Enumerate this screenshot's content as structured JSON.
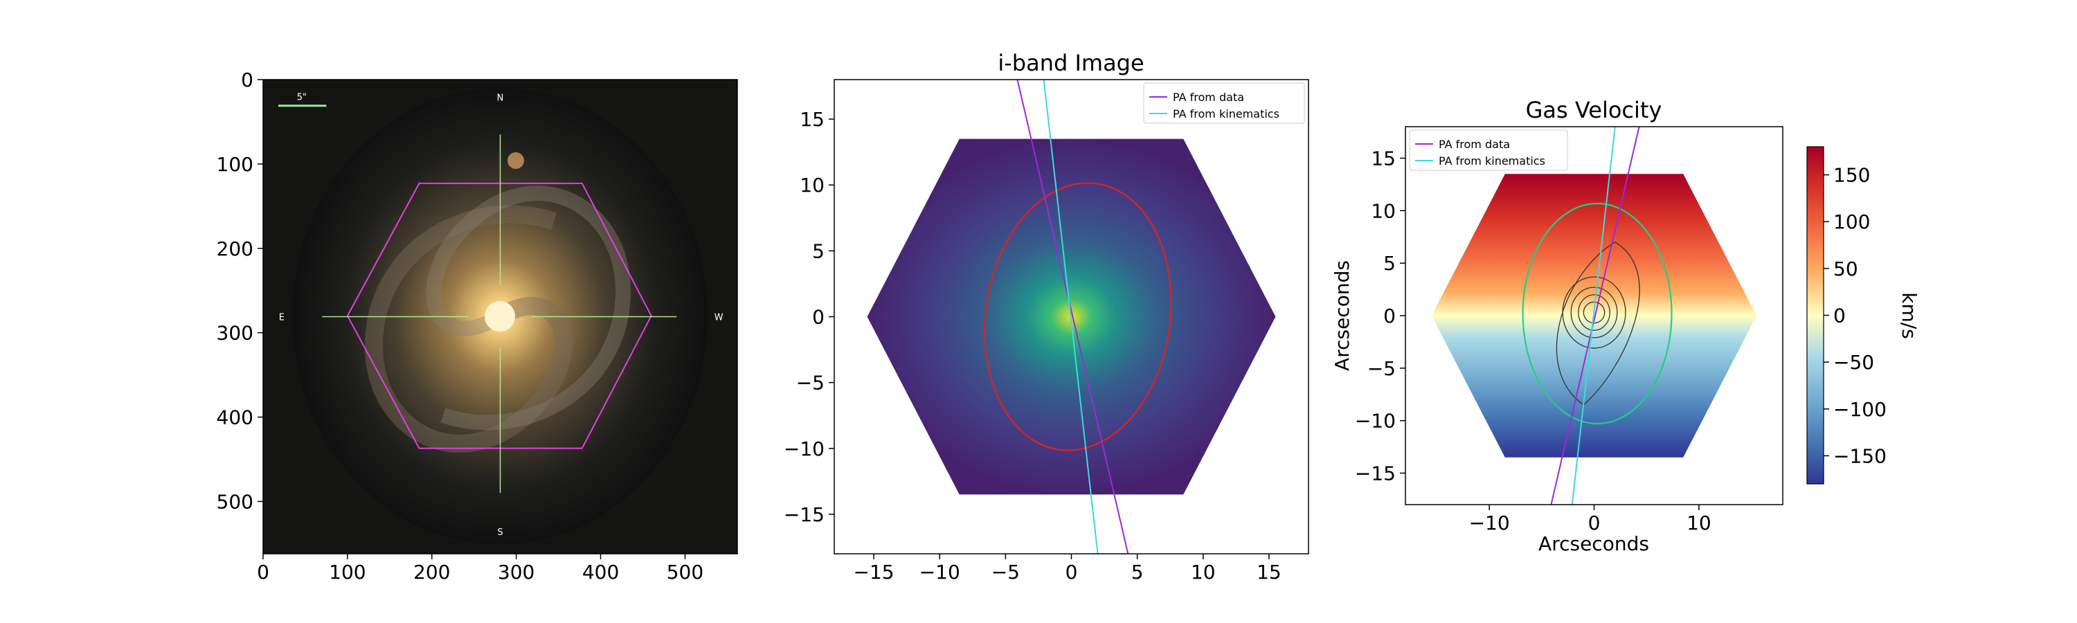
{
  "chart_data": [
    {
      "type": "image",
      "panel": "optical-image",
      "title": "",
      "xlim": [
        0,
        562
      ],
      "ylim": [
        562,
        0
      ],
      "xticks": [
        0,
        100,
        200,
        300,
        400,
        500
      ],
      "yticks": [
        0,
        100,
        200,
        300,
        400,
        500
      ],
      "overlay_text": {
        "scalebar": "5\"",
        "north": "N",
        "south": "S",
        "east": "E",
        "west": "W"
      },
      "hexagon_vertices": [
        [
          100,
          280
        ],
        [
          185,
          123
        ],
        [
          378,
          123
        ],
        [
          460,
          280
        ],
        [
          378,
          437
        ],
        [
          185,
          437
        ]
      ],
      "crosshair_center": [
        281,
        281
      ],
      "colors": {
        "hexagon": "#e040e0",
        "crosshair": "#b0e890",
        "scalebar": "#9be89b"
      }
    },
    {
      "type": "heatmap",
      "panel": "i-band",
      "title": "i-band Image",
      "xlim": [
        -18,
        18
      ],
      "ylim": [
        18,
        -18
      ],
      "xticks": [
        -15,
        -10,
        -5,
        0,
        5,
        10,
        15
      ],
      "yticks": [
        -15,
        -10,
        -5,
        0,
        5,
        10,
        15
      ],
      "legend_position": "top-right",
      "series": [
        {
          "name": "PA from data",
          "color": "#9a2bd6",
          "x": [
            -4.1,
            4.3
          ],
          "y": [
            18,
            -18
          ]
        },
        {
          "name": "PA from kinematics",
          "color": "#40d8d8",
          "x": [
            -2.1,
            2.0
          ],
          "y": [
            18,
            -18
          ]
        }
      ],
      "ellipse": {
        "center": [
          0.5,
          0
        ],
        "semi_major": 10.2,
        "semi_minor": 7.0,
        "color": "#e02020"
      },
      "colormap": "viridis"
    },
    {
      "type": "heatmap",
      "panel": "gas-velocity",
      "title": "Gas Velocity",
      "xlabel": "Arcseconds",
      "ylabel": "Arcseconds",
      "xlim": [
        -18,
        18
      ],
      "ylim": [
        -18,
        18
      ],
      "xticks": [
        -10,
        0,
        10
      ],
      "yticks": [
        -15,
        -10,
        -5,
        0,
        5,
        10,
        15
      ],
      "legend_position": "top-left",
      "series": [
        {
          "name": "PA from data",
          "color": "#9a2bd6",
          "x": [
            -4.1,
            4.3
          ],
          "y": [
            -18,
            18
          ]
        },
        {
          "name": "PA from kinematics",
          "color": "#40d8d8",
          "x": [
            -2.1,
            2.0
          ],
          "y": [
            -18,
            18
          ]
        }
      ],
      "ellipse": {
        "center": [
          0.3,
          0.2
        ],
        "semi_major": 10.5,
        "semi_minor": 7.1,
        "color": "#20d080"
      },
      "colorbar": {
        "label": "km/s",
        "range": [
          -180,
          180
        ],
        "ticks": [
          150,
          100,
          50,
          0,
          -50,
          -100,
          -150
        ],
        "tick_labels": [
          "150",
          "100",
          "50",
          "0",
          "−50",
          "−100",
          "−150"
        ],
        "colormap": "RdYlBu_r"
      }
    }
  ]
}
